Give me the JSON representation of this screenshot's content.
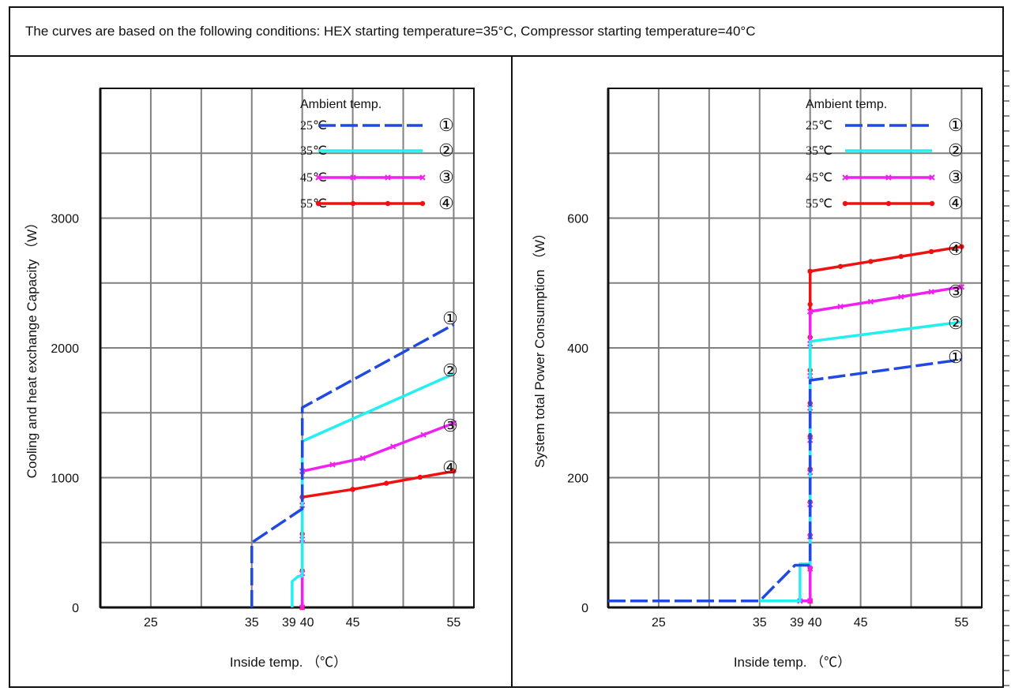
{
  "header": {
    "conditions": "The curves are based on the following conditions: HEX starting temperature=35°C, Compressor starting temperature=40°C"
  },
  "colors": {
    "c1": "#1f49e0",
    "c2": "#22f0f0",
    "c3": "#f020f0",
    "c4": "#ee1111",
    "grid": "#808080",
    "frame": "#111111"
  },
  "chart_data": [
    {
      "type": "line",
      "ylabel": "Cooling and heat exchange Capacity （W）",
      "xlabel": "Inside temp. （℃）",
      "x_ticks": [
        "25",
        "35",
        "39",
        "40",
        "45",
        "55"
      ],
      "y_ticks": [
        "0",
        "1000",
        "2000",
        "3000"
      ],
      "xlim": [
        20,
        57
      ],
      "ylim": [
        0,
        4000
      ],
      "legend_title": "Ambient temp.",
      "legend_placement": "top-right",
      "series": [
        {
          "name": "25℃",
          "marker_label": "①",
          "style": "dash",
          "color": "#1f49e0",
          "points": [
            [
              35,
              0
            ],
            [
              35,
              500
            ],
            [
              40,
              760
            ],
            [
              40,
              1540
            ],
            [
              55,
              2180
            ]
          ]
        },
        {
          "name": "35℃",
          "marker_label": "②",
          "style": "solid",
          "color": "#22f0f0",
          "points": [
            [
              39,
              0
            ],
            [
              39,
              200
            ],
            [
              39.6,
              240
            ],
            [
              40,
              240
            ],
            [
              40,
              1280
            ],
            [
              55,
              1800
            ]
          ]
        },
        {
          "name": "45℃",
          "marker_label": "③",
          "style": "marker-x",
          "color": "#f020f0",
          "points": [
            [
              40,
              0
            ],
            [
              40,
              1050
            ],
            [
              46,
              1150
            ],
            [
              55,
              1420
            ]
          ]
        },
        {
          "name": "55℃",
          "marker_label": "④",
          "style": "marker-dot",
          "color": "#ee1111",
          "points": [
            [
              40,
              0
            ],
            [
              40,
              850
            ],
            [
              45,
              910
            ],
            [
              55,
              1050
            ]
          ]
        }
      ]
    },
    {
      "type": "line",
      "ylabel": "System total Power Consumption （W）",
      "xlabel": "Inside temp. （℃）",
      "x_ticks": [
        "25",
        "35",
        "39",
        "40",
        "45",
        "55"
      ],
      "y_ticks": [
        "0",
        "200",
        "400",
        "600"
      ],
      "xlim": [
        20,
        57
      ],
      "ylim": [
        0,
        800
      ],
      "legend_title": "Ambient temp.",
      "legend_placement": "top-right",
      "series": [
        {
          "name": "25℃",
          "marker_label": "①",
          "style": "dash",
          "color": "#1f49e0",
          "points": [
            [
              20,
              10
            ],
            [
              35,
              10
            ],
            [
              38.5,
              65
            ],
            [
              40,
              65
            ],
            [
              40,
              350
            ],
            [
              55,
              382
            ]
          ]
        },
        {
          "name": "35℃",
          "marker_label": "②",
          "style": "solid",
          "color": "#22f0f0",
          "points": [
            [
              35,
              10
            ],
            [
              39,
              10
            ],
            [
              39,
              67
            ],
            [
              40,
              67
            ],
            [
              40,
              410
            ],
            [
              55,
              440
            ]
          ]
        },
        {
          "name": "45℃",
          "marker_label": "③",
          "style": "marker-x",
          "color": "#f020f0",
          "points": [
            [
              39,
              10
            ],
            [
              40,
              10
            ],
            [
              40,
              456
            ],
            [
              55,
              494
            ]
          ]
        },
        {
          "name": "55℃",
          "marker_label": "④",
          "style": "marker-dot",
          "color": "#ee1111",
          "points": [
            [
              40,
              10
            ],
            [
              40,
              518
            ],
            [
              55,
              556
            ]
          ]
        }
      ]
    }
  ]
}
